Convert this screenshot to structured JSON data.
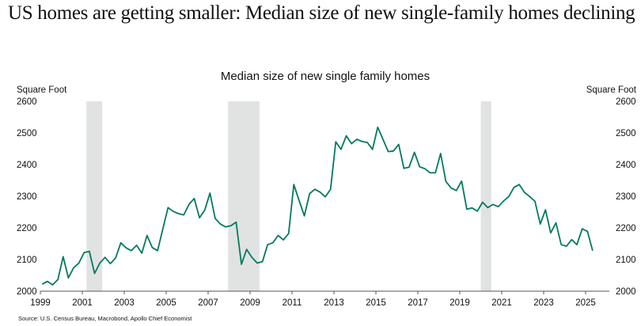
{
  "headline": "US homes are getting smaller: Median size of new single-family homes declining",
  "chart_data": {
    "type": "line",
    "title": "Median size of new single family homes",
    "ylabel_left": "Square Foot",
    "ylabel_right": "Square Foot",
    "xlabel": "",
    "ylim": [
      2000,
      2600
    ],
    "yticks": [
      "2000",
      "2100",
      "2200",
      "2300",
      "2400",
      "2500",
      "2600"
    ],
    "xlim": [
      1999,
      2026.1
    ],
    "xticks": [
      "1999",
      "2001",
      "2003",
      "2005",
      "2007",
      "2009",
      "2011",
      "2013",
      "2015",
      "2017",
      "2019",
      "2021",
      "2023",
      "2025"
    ],
    "grid": false,
    "frequency": "quarterly",
    "start": "1999Q1",
    "end": "2025Q2",
    "line_color": "#007a5e",
    "recession_color": "#e1e3e2",
    "recessions": [
      {
        "start": 2001.2,
        "end": 2001.95
      },
      {
        "start": 2007.95,
        "end": 2009.45
      },
      {
        "start": 2020.0,
        "end": 2020.5
      }
    ],
    "series": [
      {
        "name": "Median size of new single family homes",
        "values": [
          2022,
          2031,
          2020,
          2037,
          2109,
          2042,
          2074,
          2089,
          2122,
          2126,
          2056,
          2089,
          2107,
          2087,
          2105,
          2153,
          2137,
          2128,
          2145,
          2120,
          2176,
          2138,
          2128,
          2196,
          2264,
          2252,
          2245,
          2241,
          2274,
          2293,
          2232,
          2256,
          2310,
          2230,
          2212,
          2203,
          2207,
          2218,
          2085,
          2132,
          2107,
          2089,
          2093,
          2147,
          2153,
          2176,
          2162,
          2182,
          2337,
          2287,
          2238,
          2308,
          2322,
          2313,
          2298,
          2322,
          2472,
          2448,
          2491,
          2466,
          2480,
          2473,
          2470,
          2448,
          2518,
          2480,
          2441,
          2443,
          2464,
          2388,
          2392,
          2439,
          2393,
          2387,
          2374,
          2374,
          2435,
          2347,
          2326,
          2318,
          2348,
          2259,
          2263,
          2253,
          2281,
          2264,
          2274,
          2267,
          2285,
          2299,
          2328,
          2337,
          2312,
          2299,
          2284,
          2212,
          2257,
          2184,
          2216,
          2147,
          2142,
          2163,
          2147,
          2197,
          2189,
          2128
        ]
      }
    ],
    "source": "Source: U.S. Census Bureau, Macrobond, Apollo Chief Economist"
  }
}
